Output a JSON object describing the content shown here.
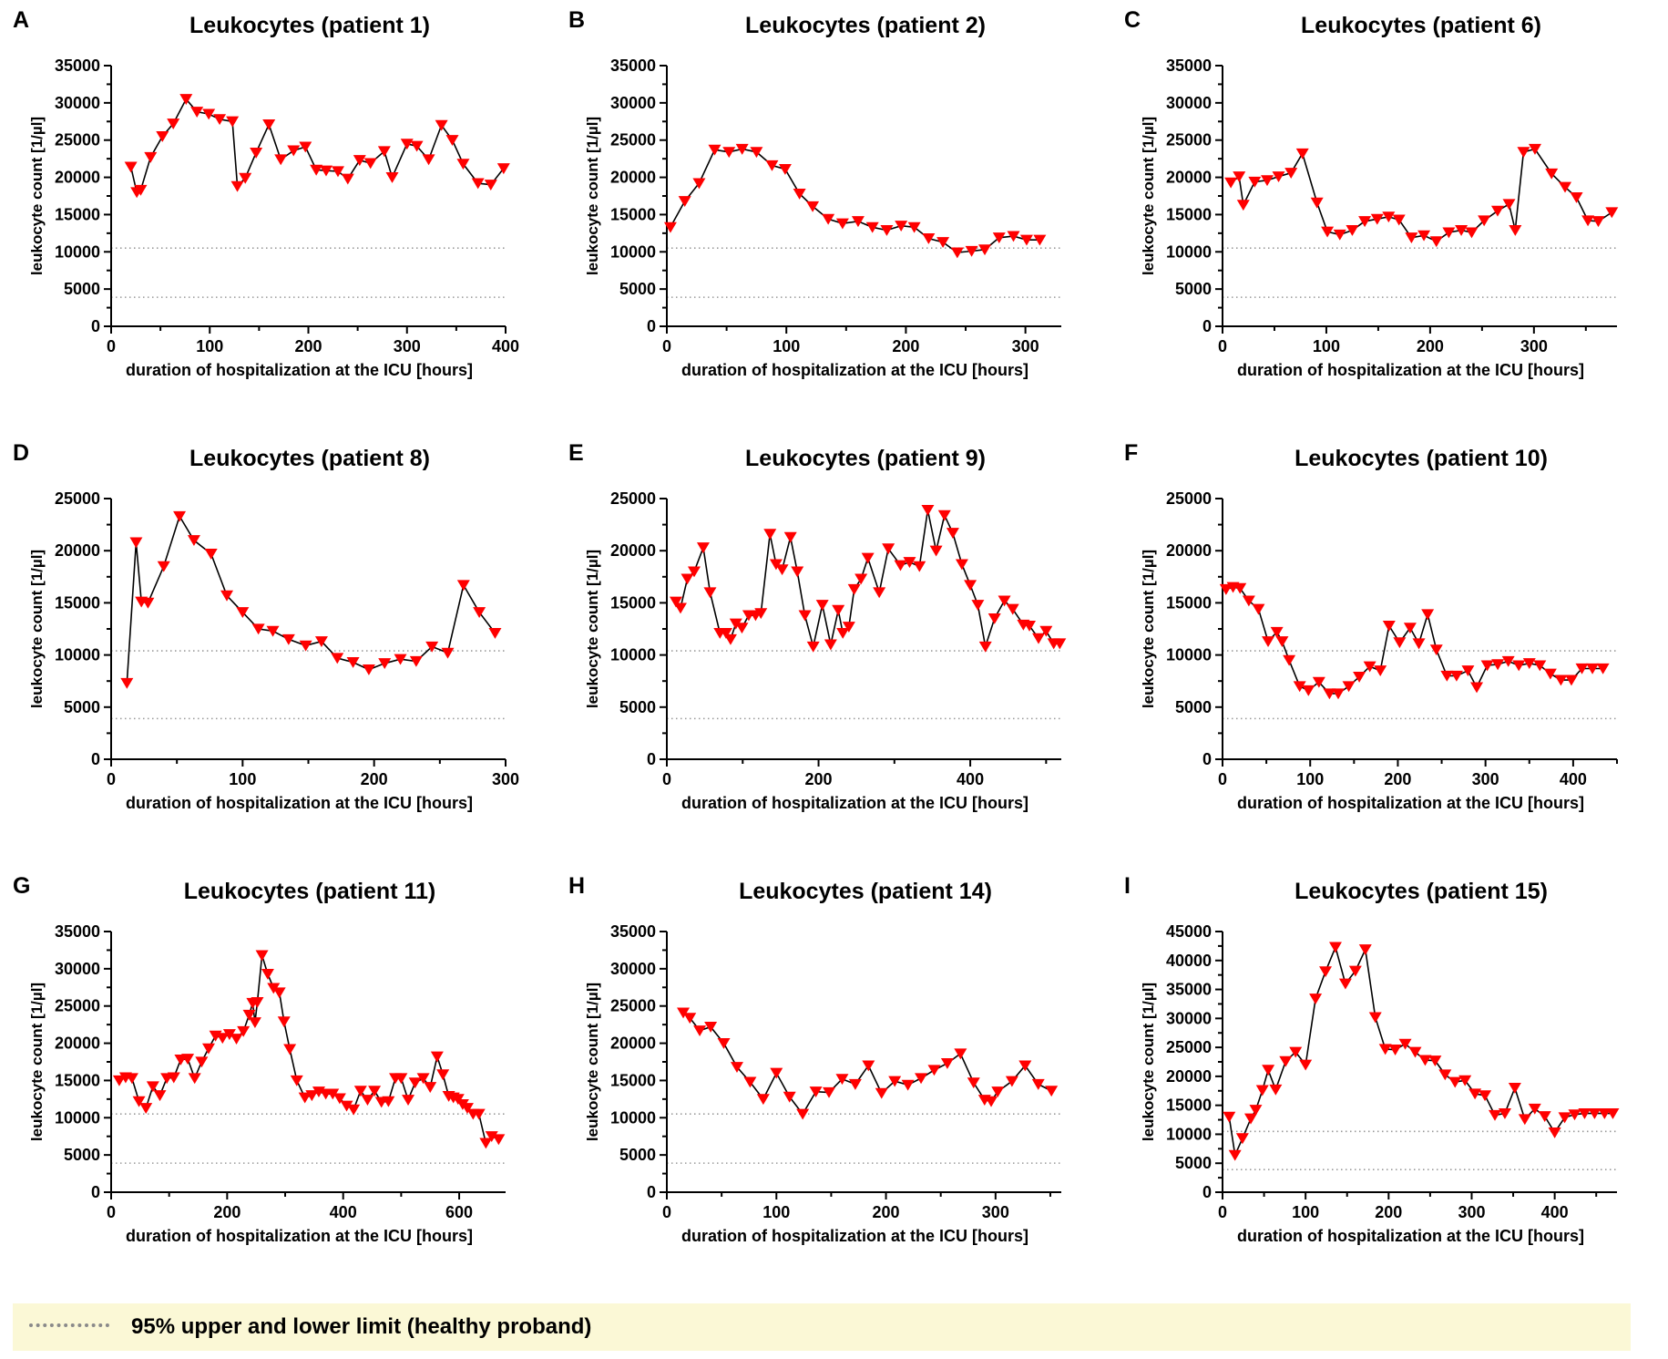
{
  "legend": {
    "label": "95% upper and lower limit (healthy proband)"
  },
  "colors": {
    "marker": "#ff0000",
    "line": "#000000",
    "reference": "#9a9a9a",
    "legend_bg": "#fbf8d6"
  },
  "chart_data": [
    {
      "type": "line",
      "letter": "A",
      "title": "Leukocytes (patient 1)",
      "xlabel": "duration of hospitalization at the ICU [hours]",
      "ylabel": "leukocyte count [1/µl]",
      "xlim": [
        0,
        400
      ],
      "ylim": [
        0,
        35000
      ],
      "xticks": [
        0,
        100,
        200,
        300,
        400
      ],
      "yticks": [
        0,
        5000,
        10000,
        15000,
        20000,
        25000,
        30000,
        35000
      ],
      "reference_lines": [
        10500,
        3900
      ],
      "x": [
        20,
        26,
        30,
        40,
        52,
        63,
        76,
        87,
        99,
        110,
        123,
        128,
        136,
        147,
        160,
        172,
        185,
        197,
        208,
        218,
        230,
        240,
        252,
        263,
        277,
        285,
        300,
        310,
        322,
        335,
        346,
        357,
        372,
        385,
        398
      ],
      "y": [
        21400,
        18000,
        18300,
        22700,
        25500,
        27200,
        30500,
        28800,
        28500,
        27800,
        27500,
        18800,
        19900,
        23300,
        27100,
        22400,
        23600,
        24100,
        21000,
        20900,
        20800,
        19800,
        22300,
        21900,
        23500,
        20000,
        24500,
        24200,
        22400,
        27000,
        25000,
        21800,
        19200,
        19000,
        21200
      ]
    },
    {
      "type": "line",
      "letter": "B",
      "title": "Leukocytes (patient 2)",
      "xlabel": "duration of hospitalization at the ICU [hours]",
      "ylabel": "leukocyte count [1/µl]",
      "xlim": [
        0,
        330
      ],
      "ylim": [
        0,
        35000
      ],
      "xticks": [
        0,
        100,
        200,
        300
      ],
      "yticks": [
        0,
        5000,
        10000,
        15000,
        20000,
        25000,
        30000,
        35000
      ],
      "reference_lines": [
        10500,
        3900
      ],
      "x": [
        3,
        15,
        27,
        40,
        52,
        63,
        75,
        88,
        99,
        111,
        122,
        135,
        147,
        160,
        172,
        184,
        196,
        207,
        219,
        231,
        243,
        255,
        266,
        278,
        290,
        301,
        312
      ],
      "y": [
        13300,
        16800,
        19200,
        23700,
        23400,
        23800,
        23400,
        21600,
        21100,
        17800,
        16100,
        14400,
        13800,
        14100,
        13300,
        12900,
        13500,
        13300,
        11800,
        11300,
        9900,
        10100,
        10300,
        11900,
        12100,
        11600,
        11600
      ]
    },
    {
      "type": "line",
      "letter": "C",
      "title": "Leukocytes (patient 6)",
      "xlabel": "duration of hospitalization at the ICU [hours]",
      "ylabel": "leukocyte count [1/µl]",
      "xlim": [
        0,
        380
      ],
      "ylim": [
        0,
        35000
      ],
      "xticks": [
        0,
        100,
        200,
        300
      ],
      "yticks": [
        0,
        5000,
        10000,
        15000,
        20000,
        25000,
        30000,
        35000
      ],
      "reference_lines": [
        10500,
        3900
      ],
      "x": [
        8,
        16,
        20,
        31,
        43,
        54,
        66,
        77,
        91,
        101,
        113,
        125,
        137,
        149,
        160,
        170,
        182,
        194,
        206,
        218,
        230,
        240,
        252,
        265,
        276,
        282,
        290,
        301,
        317,
        330,
        341,
        352,
        362,
        375
      ],
      "y": [
        19300,
        20100,
        16300,
        19400,
        19600,
        20100,
        20600,
        23200,
        16600,
        12700,
        12300,
        12900,
        14100,
        14400,
        14700,
        14300,
        11900,
        12200,
        11400,
        12600,
        12900,
        12600,
        14200,
        15500,
        16400,
        12900,
        23400,
        23800,
        20500,
        18700,
        17300,
        14200,
        14100,
        15300
      ]
    },
    {
      "type": "line",
      "letter": "D",
      "title": "Leukocytes (patient 8)",
      "xlabel": "duration of hospitalization at the ICU [hours]",
      "ylabel": "leukocyte count [1/µl]",
      "xlim": [
        0,
        300
      ],
      "ylim": [
        0,
        25000
      ],
      "xticks": [
        0,
        100,
        200,
        300
      ],
      "yticks": [
        0,
        5000,
        10000,
        15000,
        20000,
        25000
      ],
      "reference_lines": [
        10400,
        3900
      ],
      "x": [
        12,
        19,
        23,
        28,
        40,
        52,
        63,
        76,
        88,
        100,
        112,
        123,
        135,
        148,
        160,
        172,
        184,
        196,
        208,
        220,
        232,
        244,
        256,
        268,
        280,
        292
      ],
      "y": [
        7300,
        20800,
        15100,
        15000,
        18500,
        23300,
        21000,
        19700,
        15700,
        14100,
        12500,
        12300,
        11500,
        10900,
        11300,
        9700,
        9300,
        8600,
        9200,
        9600,
        9400,
        10800,
        10200,
        16700,
        14100,
        12100
      ]
    },
    {
      "type": "line",
      "letter": "E",
      "title": "Leukocytes (patient 9)",
      "xlabel": "duration of hospitalization at the ICU [hours]",
      "ylabel": "leukocyte count [1/µl]",
      "xlim": [
        0,
        520
      ],
      "ylim": [
        0,
        25000
      ],
      "xticks": [
        0,
        200,
        400
      ],
      "yticks": [
        0,
        5000,
        10000,
        15000,
        20000,
        25000
      ],
      "reference_lines": [
        10400,
        3900
      ],
      "x": [
        12,
        18,
        27,
        36,
        48,
        57,
        70,
        78,
        84,
        91,
        99,
        108,
        117,
        124,
        136,
        144,
        152,
        163,
        172,
        182,
        193,
        205,
        216,
        226,
        232,
        240,
        247,
        256,
        265,
        280,
        292,
        308,
        320,
        333,
        344,
        355,
        366,
        377,
        389,
        400,
        410,
        420,
        432,
        445,
        456,
        470,
        478,
        490,
        500,
        510,
        518
      ],
      "y": [
        15100,
        14500,
        17300,
        18000,
        20300,
        16000,
        12100,
        12100,
        11500,
        13000,
        12600,
        13800,
        13800,
        14000,
        21600,
        18700,
        18200,
        21300,
        18000,
        13800,
        10800,
        14800,
        11000,
        14300,
        12100,
        12700,
        16300,
        17300,
        19300,
        16000,
        20200,
        18600,
        18900,
        18500,
        23900,
        20000,
        23400,
        21700,
        18700,
        16700,
        14800,
        10800,
        13500,
        15200,
        14400,
        12900,
        12800,
        11600,
        12300,
        11100,
        11100
      ]
    },
    {
      "type": "line",
      "letter": "F",
      "title": "Leukocytes (patient 10)",
      "xlabel": "duration of hospitalization at the ICU [hours]",
      "ylabel": "leukocyte count [1/µl]",
      "xlim": [
        0,
        450
      ],
      "ylim": [
        0,
        25000
      ],
      "xticks": [
        0,
        100,
        200,
        300,
        400
      ],
      "yticks": [
        0,
        5000,
        10000,
        15000,
        20000,
        25000
      ],
      "reference_lines": [
        10400,
        3900
      ],
      "x": [
        4,
        12,
        20,
        30,
        41,
        52,
        62,
        68,
        76,
        88,
        98,
        110,
        122,
        132,
        144,
        156,
        168,
        180,
        190,
        202,
        214,
        224,
        234,
        244,
        256,
        267,
        280,
        290,
        302,
        314,
        326,
        338,
        350,
        362,
        374,
        386,
        398,
        410,
        422,
        434
      ],
      "y": [
        16300,
        16500,
        16400,
        15200,
        14400,
        11300,
        12200,
        11300,
        9500,
        7000,
        6600,
        7400,
        6300,
        6300,
        7000,
        7900,
        8900,
        8500,
        12800,
        11200,
        12600,
        11100,
        13900,
        10500,
        8000,
        8000,
        8500,
        6900,
        9000,
        9100,
        9400,
        9000,
        9200,
        9000,
        8200,
        7600,
        7600,
        8700,
        8700,
        8700
      ]
    },
    {
      "type": "line",
      "letter": "G",
      "title": "Leukocytes (patient 11)",
      "xlabel": "duration of hospitalization at the ICU [hours]",
      "ylabel": "leukocyte count [1/µl]",
      "xlim": [
        0,
        680
      ],
      "ylim": [
        0,
        35000
      ],
      "xticks": [
        0,
        200,
        400,
        600
      ],
      "yticks": [
        0,
        5000,
        10000,
        15000,
        20000,
        25000,
        30000,
        35000
      ],
      "reference_lines": [
        10500,
        3900
      ],
      "x": [
        14,
        25,
        36,
        48,
        60,
        72,
        84,
        96,
        108,
        120,
        132,
        144,
        156,
        168,
        180,
        192,
        204,
        216,
        228,
        238,
        244,
        248,
        252,
        260,
        270,
        280,
        290,
        298,
        308,
        320,
        334,
        346,
        358,
        370,
        382,
        394,
        406,
        418,
        430,
        442,
        454,
        466,
        478,
        490,
        500,
        512,
        524,
        538,
        550,
        562,
        572,
        582,
        590,
        598,
        606,
        614,
        624,
        634,
        646,
        656,
        668
      ],
      "y": [
        15000,
        15400,
        15300,
        12200,
        11300,
        14200,
        13000,
        15300,
        15400,
        17800,
        17900,
        15300,
        17500,
        19300,
        21000,
        20700,
        21200,
        20600,
        21600,
        23800,
        25400,
        22800,
        25500,
        31800,
        29300,
        27400,
        26800,
        22900,
        19200,
        15000,
        12700,
        13000,
        13500,
        13200,
        13200,
        12600,
        11600,
        11100,
        13600,
        12400,
        13600,
        12100,
        12200,
        15300,
        15300,
        12400,
        14700,
        15300,
        14100,
        18200,
        15800,
        12900,
        12700,
        12500,
        11800,
        11300,
        10500,
        10500,
        6600,
        7500,
        7100
      ]
    },
    {
      "type": "line",
      "letter": "H",
      "title": "Leukocytes (patient 14)",
      "xlabel": "duration of hospitalization at the ICU [hours]",
      "ylabel": "leukocyte count [1/µl]",
      "xlim": [
        0,
        360
      ],
      "ylim": [
        0,
        35000
      ],
      "xticks": [
        0,
        100,
        200,
        300
      ],
      "yticks": [
        0,
        5000,
        10000,
        15000,
        20000,
        25000,
        30000,
        35000
      ],
      "reference_lines": [
        10500,
        3900
      ],
      "x": [
        15,
        21,
        30,
        40,
        52,
        64,
        76,
        88,
        100,
        112,
        124,
        136,
        148,
        160,
        172,
        184,
        196,
        208,
        220,
        232,
        244,
        256,
        268,
        280,
        290,
        296,
        302,
        315,
        327,
        339,
        351
      ],
      "y": [
        24100,
        23400,
        21700,
        22200,
        20000,
        16800,
        14800,
        12500,
        16000,
        12800,
        10500,
        13500,
        13400,
        15200,
        14500,
        17000,
        13300,
        14900,
        14400,
        15300,
        16400,
        17300,
        18600,
        14700,
        12400,
        12200,
        13500,
        14900,
        17000,
        14500,
        13600
      ]
    },
    {
      "type": "line",
      "letter": "I",
      "title": "Leukocytes (patient 15)",
      "xlabel": "duration of hospitalization at the ICU [hours]",
      "ylabel": "leukocyte count [1/µl]",
      "xlim": [
        0,
        475
      ],
      "ylim": [
        0,
        45000
      ],
      "xticks": [
        0,
        100,
        200,
        300,
        400
      ],
      "yticks": [
        0,
        5000,
        10000,
        15000,
        20000,
        25000,
        30000,
        35000,
        40000,
        45000
      ],
      "reference_lines": [
        10500,
        3900
      ],
      "x": [
        8,
        15,
        24,
        34,
        40,
        48,
        55,
        64,
        76,
        88,
        100,
        112,
        124,
        136,
        148,
        160,
        172,
        184,
        196,
        208,
        220,
        232,
        244,
        256,
        268,
        280,
        292,
        304,
        316,
        328,
        340,
        352,
        364,
        376,
        388,
        400,
        412,
        424,
        436,
        448,
        460,
        470
      ],
      "y": [
        13000,
        6400,
        9300,
        12700,
        14200,
        17600,
        21100,
        17700,
        22600,
        24200,
        22000,
        33400,
        38100,
        42300,
        36000,
        38200,
        41900,
        30200,
        24700,
        24600,
        25600,
        24200,
        22800,
        22700,
        20300,
        19000,
        19300,
        17000,
        16700,
        13300,
        13600,
        18000,
        12600,
        14400,
        13100,
        10300,
        12900,
        13400,
        13600,
        13600,
        13600,
        13600
      ]
    }
  ]
}
